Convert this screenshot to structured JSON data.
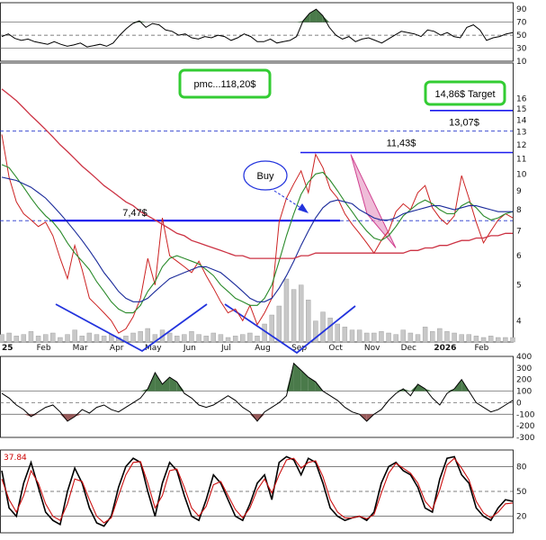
{
  "chart_data": [
    {
      "type": "line",
      "panel": "rsi",
      "y_ticks": [
        90,
        70,
        50,
        30,
        10
      ],
      "levels": [
        30,
        50,
        70
      ],
      "ylim": [
        10,
        100
      ],
      "series": [
        {
          "values": [
            48,
            52,
            45,
            42,
            44,
            40,
            38,
            36,
            40,
            36,
            33,
            35,
            38,
            32,
            34,
            36,
            33,
            38,
            50,
            60,
            68,
            72,
            62,
            68,
            66,
            58,
            56,
            50,
            52,
            46,
            44,
            48,
            46,
            50,
            48,
            42,
            46,
            52,
            48,
            40,
            40,
            44,
            38,
            40,
            42,
            48,
            72,
            84,
            90,
            80,
            62,
            50,
            44,
            48,
            40,
            44,
            46,
            42,
            38,
            44,
            50,
            56,
            54,
            52,
            48,
            58,
            56,
            50,
            54,
            48,
            46,
            62,
            66,
            58,
            42,
            46,
            48,
            52,
            54
          ]
        }
      ]
    },
    {
      "type": "line",
      "panel": "price",
      "y_scale": "log",
      "ylim": [
        3.5,
        20
      ],
      "y_ticks": [
        4,
        5,
        6,
        7,
        8,
        9,
        10,
        11,
        12,
        13,
        14,
        15,
        16
      ],
      "x_labels": [
        "25",
        "Feb",
        "Mar",
        "Apr",
        "May",
        "Jun",
        "Jul",
        "Aug",
        "Sep",
        "Oct",
        "Nov",
        "Dec",
        "2026",
        "Feb"
      ],
      "series": [
        {
          "values": [
            12.8,
            9.8,
            8.4,
            7.8,
            7.5,
            7.2,
            7.4,
            6.8,
            5.9,
            5.2,
            6.4,
            5.5,
            4.6,
            4.4,
            4.2,
            4.0,
            3.7,
            3.8,
            4.1,
            4.6,
            5.9,
            5.0,
            7.6,
            6.0,
            5.8,
            5.6,
            5.4,
            5.8,
            5.3,
            4.9,
            4.5,
            4.2,
            4.3,
            4.0,
            4.4,
            3.9,
            4.2,
            4.6,
            7.4,
            8.6,
            9.4,
            10.2,
            8.9,
            11.3,
            10.4,
            9.1,
            8.6,
            7.8,
            7.3,
            6.9,
            6.5,
            6.1,
            6.6,
            7.0,
            7.9,
            8.3,
            8.0,
            8.9,
            9.3,
            8.1,
            7.6,
            7.3,
            7.7,
            9.9,
            8.6,
            7.4,
            6.5,
            7.0,
            7.5,
            7.8,
            7.6
          ]
        },
        {
          "values": [
            10.6,
            10.4,
            9.8,
            9.2,
            8.6,
            8.1,
            7.7,
            7.4,
            7.0,
            6.5,
            6.1,
            5.8,
            5.5,
            5.1,
            4.8,
            4.5,
            4.3,
            4.2,
            4.2,
            4.4,
            4.8,
            5.1,
            5.6,
            5.9,
            6.0,
            5.9,
            5.8,
            5.7,
            5.5,
            5.3,
            5.0,
            4.8,
            4.6,
            4.5,
            4.4,
            4.4,
            4.6,
            5.0,
            5.8,
            6.8,
            7.8,
            8.8,
            9.5,
            10.0,
            10.1,
            9.6,
            9.0,
            8.4,
            7.9,
            7.4,
            7.0,
            6.7,
            6.6,
            6.8,
            7.2,
            7.7,
            8.0,
            8.3,
            8.5,
            8.3,
            8.0,
            7.8,
            7.8,
            8.2,
            8.4,
            8.1,
            7.7,
            7.5,
            7.6,
            7.8,
            7.9
          ]
        },
        {
          "values": [
            9.8,
            9.7,
            9.6,
            9.4,
            9.2,
            8.9,
            8.6,
            8.2,
            7.8,
            7.4,
            7.0,
            6.6,
            6.2,
            5.8,
            5.4,
            5.1,
            4.8,
            4.6,
            4.5,
            4.5,
            4.6,
            4.8,
            5.0,
            5.2,
            5.3,
            5.4,
            5.5,
            5.6,
            5.6,
            5.5,
            5.4,
            5.2,
            5.0,
            4.8,
            4.6,
            4.5,
            4.5,
            4.6,
            4.9,
            5.3,
            5.8,
            6.4,
            7.0,
            7.6,
            8.1,
            8.4,
            8.5,
            8.4,
            8.3,
            8.0,
            7.8,
            7.6,
            7.5,
            7.5,
            7.6,
            7.8,
            7.9,
            8.0,
            8.1,
            8.2,
            8.2,
            8.1,
            8.0,
            8.1,
            8.2,
            8.2,
            8.1,
            8.0,
            7.9,
            7.9,
            7.9
          ]
        },
        {
          "values": [
            17.0,
            16.4,
            15.8,
            15.1,
            14.4,
            13.8,
            13.2,
            12.6,
            12.0,
            11.5,
            11.0,
            10.5,
            10.1,
            9.7,
            9.3,
            9.0,
            8.7,
            8.4,
            8.2,
            7.9,
            7.7,
            7.5,
            7.3,
            7.1,
            6.9,
            6.8,
            6.6,
            6.5,
            6.4,
            6.3,
            6.2,
            6.1,
            6.0,
            6.0,
            5.9,
            5.9,
            5.9,
            5.9,
            5.9,
            5.9,
            5.9,
            6.0,
            6.0,
            6.1,
            6.1,
            6.1,
            6.1,
            6.1,
            6.1,
            6.1,
            6.1,
            6.1,
            6.1,
            6.1,
            6.1,
            6.1,
            6.2,
            6.2,
            6.3,
            6.3,
            6.4,
            6.4,
            6.5,
            6.6,
            6.6,
            6.7,
            6.7,
            6.8,
            6.8,
            6.9,
            6.9
          ]
        }
      ],
      "volume": [
        5,
        6,
        4,
        5,
        7,
        4,
        5,
        6,
        3,
        5,
        8,
        4,
        6,
        5,
        4,
        5,
        3,
        4,
        6,
        7,
        9,
        5,
        8,
        6,
        4,
        5,
        7,
        5,
        4,
        6,
        5,
        3,
        4,
        5,
        6,
        4,
        12,
        18,
        24,
        42,
        35,
        38,
        28,
        14,
        20,
        16,
        12,
        10,
        8,
        8,
        6,
        6,
        7,
        6,
        5,
        8,
        6,
        5,
        10,
        7,
        9,
        7,
        6,
        5,
        5,
        4,
        3,
        4,
        3,
        3,
        3
      ],
      "annotations": [
        {
          "text": "pmc...118,20$",
          "color": "#33cc33"
        },
        {
          "text": "14,86$ Target",
          "value": 14.86,
          "color": "#33cc33"
        },
        {
          "text": "13,07$",
          "value": 13.07
        },
        {
          "text": "11,43$",
          "value": 11.43
        },
        {
          "text": "7,47$",
          "value": 7.47
        },
        {
          "text": "Buy"
        }
      ],
      "volume_scale_note": "relative heights"
    },
    {
      "type": "line",
      "panel": "cci",
      "y_ticks": [
        400,
        300,
        200,
        100,
        0,
        -100,
        -200,
        -300
      ],
      "levels": [
        -100,
        0,
        100
      ],
      "ylim": [
        -300,
        400
      ],
      "series": [
        {
          "values": [
            80,
            40,
            -20,
            -60,
            -120,
            -80,
            -40,
            -20,
            -80,
            -160,
            -120,
            -60,
            -90,
            -40,
            -20,
            -60,
            -80,
            -40,
            0,
            40,
            120,
            260,
            160,
            220,
            180,
            80,
            40,
            -20,
            -40,
            -20,
            20,
            60,
            20,
            -40,
            -80,
            -160,
            -80,
            -40,
            0,
            60,
            340,
            280,
            220,
            180,
            100,
            60,
            20,
            -40,
            -80,
            -100,
            -160,
            -100,
            -60,
            20,
            80,
            120,
            60,
            160,
            120,
            40,
            -20,
            80,
            120,
            200,
            100,
            0,
            -40,
            -80,
            -60,
            -20,
            20
          ]
        }
      ]
    },
    {
      "type": "line",
      "panel": "stochastic",
      "value_label": "37.84",
      "y_ticks": [
        80,
        50,
        20
      ],
      "levels": [
        20,
        50,
        80
      ],
      "ylim": [
        0,
        100
      ],
      "series": [
        {
          "values": [
            75,
            30,
            20,
            60,
            85,
            55,
            25,
            15,
            10,
            50,
            78,
            60,
            30,
            12,
            8,
            20,
            55,
            80,
            90,
            85,
            50,
            20,
            60,
            85,
            75,
            45,
            20,
            15,
            40,
            70,
            60,
            40,
            20,
            15,
            35,
            60,
            70,
            40,
            85,
            92,
            88,
            70,
            90,
            85,
            60,
            30,
            20,
            15,
            18,
            20,
            15,
            25,
            60,
            80,
            85,
            75,
            70,
            55,
            30,
            25,
            65,
            90,
            92,
            70,
            60,
            30,
            20,
            15,
            30,
            40,
            38
          ]
        },
        {
          "values": [
            65,
            40,
            25,
            45,
            75,
            60,
            35,
            20,
            15,
            35,
            65,
            62,
            40,
            20,
            12,
            18,
            45,
            70,
            85,
            86,
            60,
            30,
            45,
            75,
            77,
            55,
            30,
            20,
            32,
            58,
            62,
            45,
            28,
            18,
            30,
            52,
            65,
            48,
            70,
            88,
            90,
            78,
            85,
            87,
            68,
            40,
            25,
            18,
            18,
            20,
            17,
            22,
            48,
            72,
            84,
            78,
            72,
            60,
            38,
            28,
            52,
            82,
            90,
            78,
            64,
            38,
            24,
            18,
            25,
            35,
            36
          ]
        }
      ]
    }
  ]
}
